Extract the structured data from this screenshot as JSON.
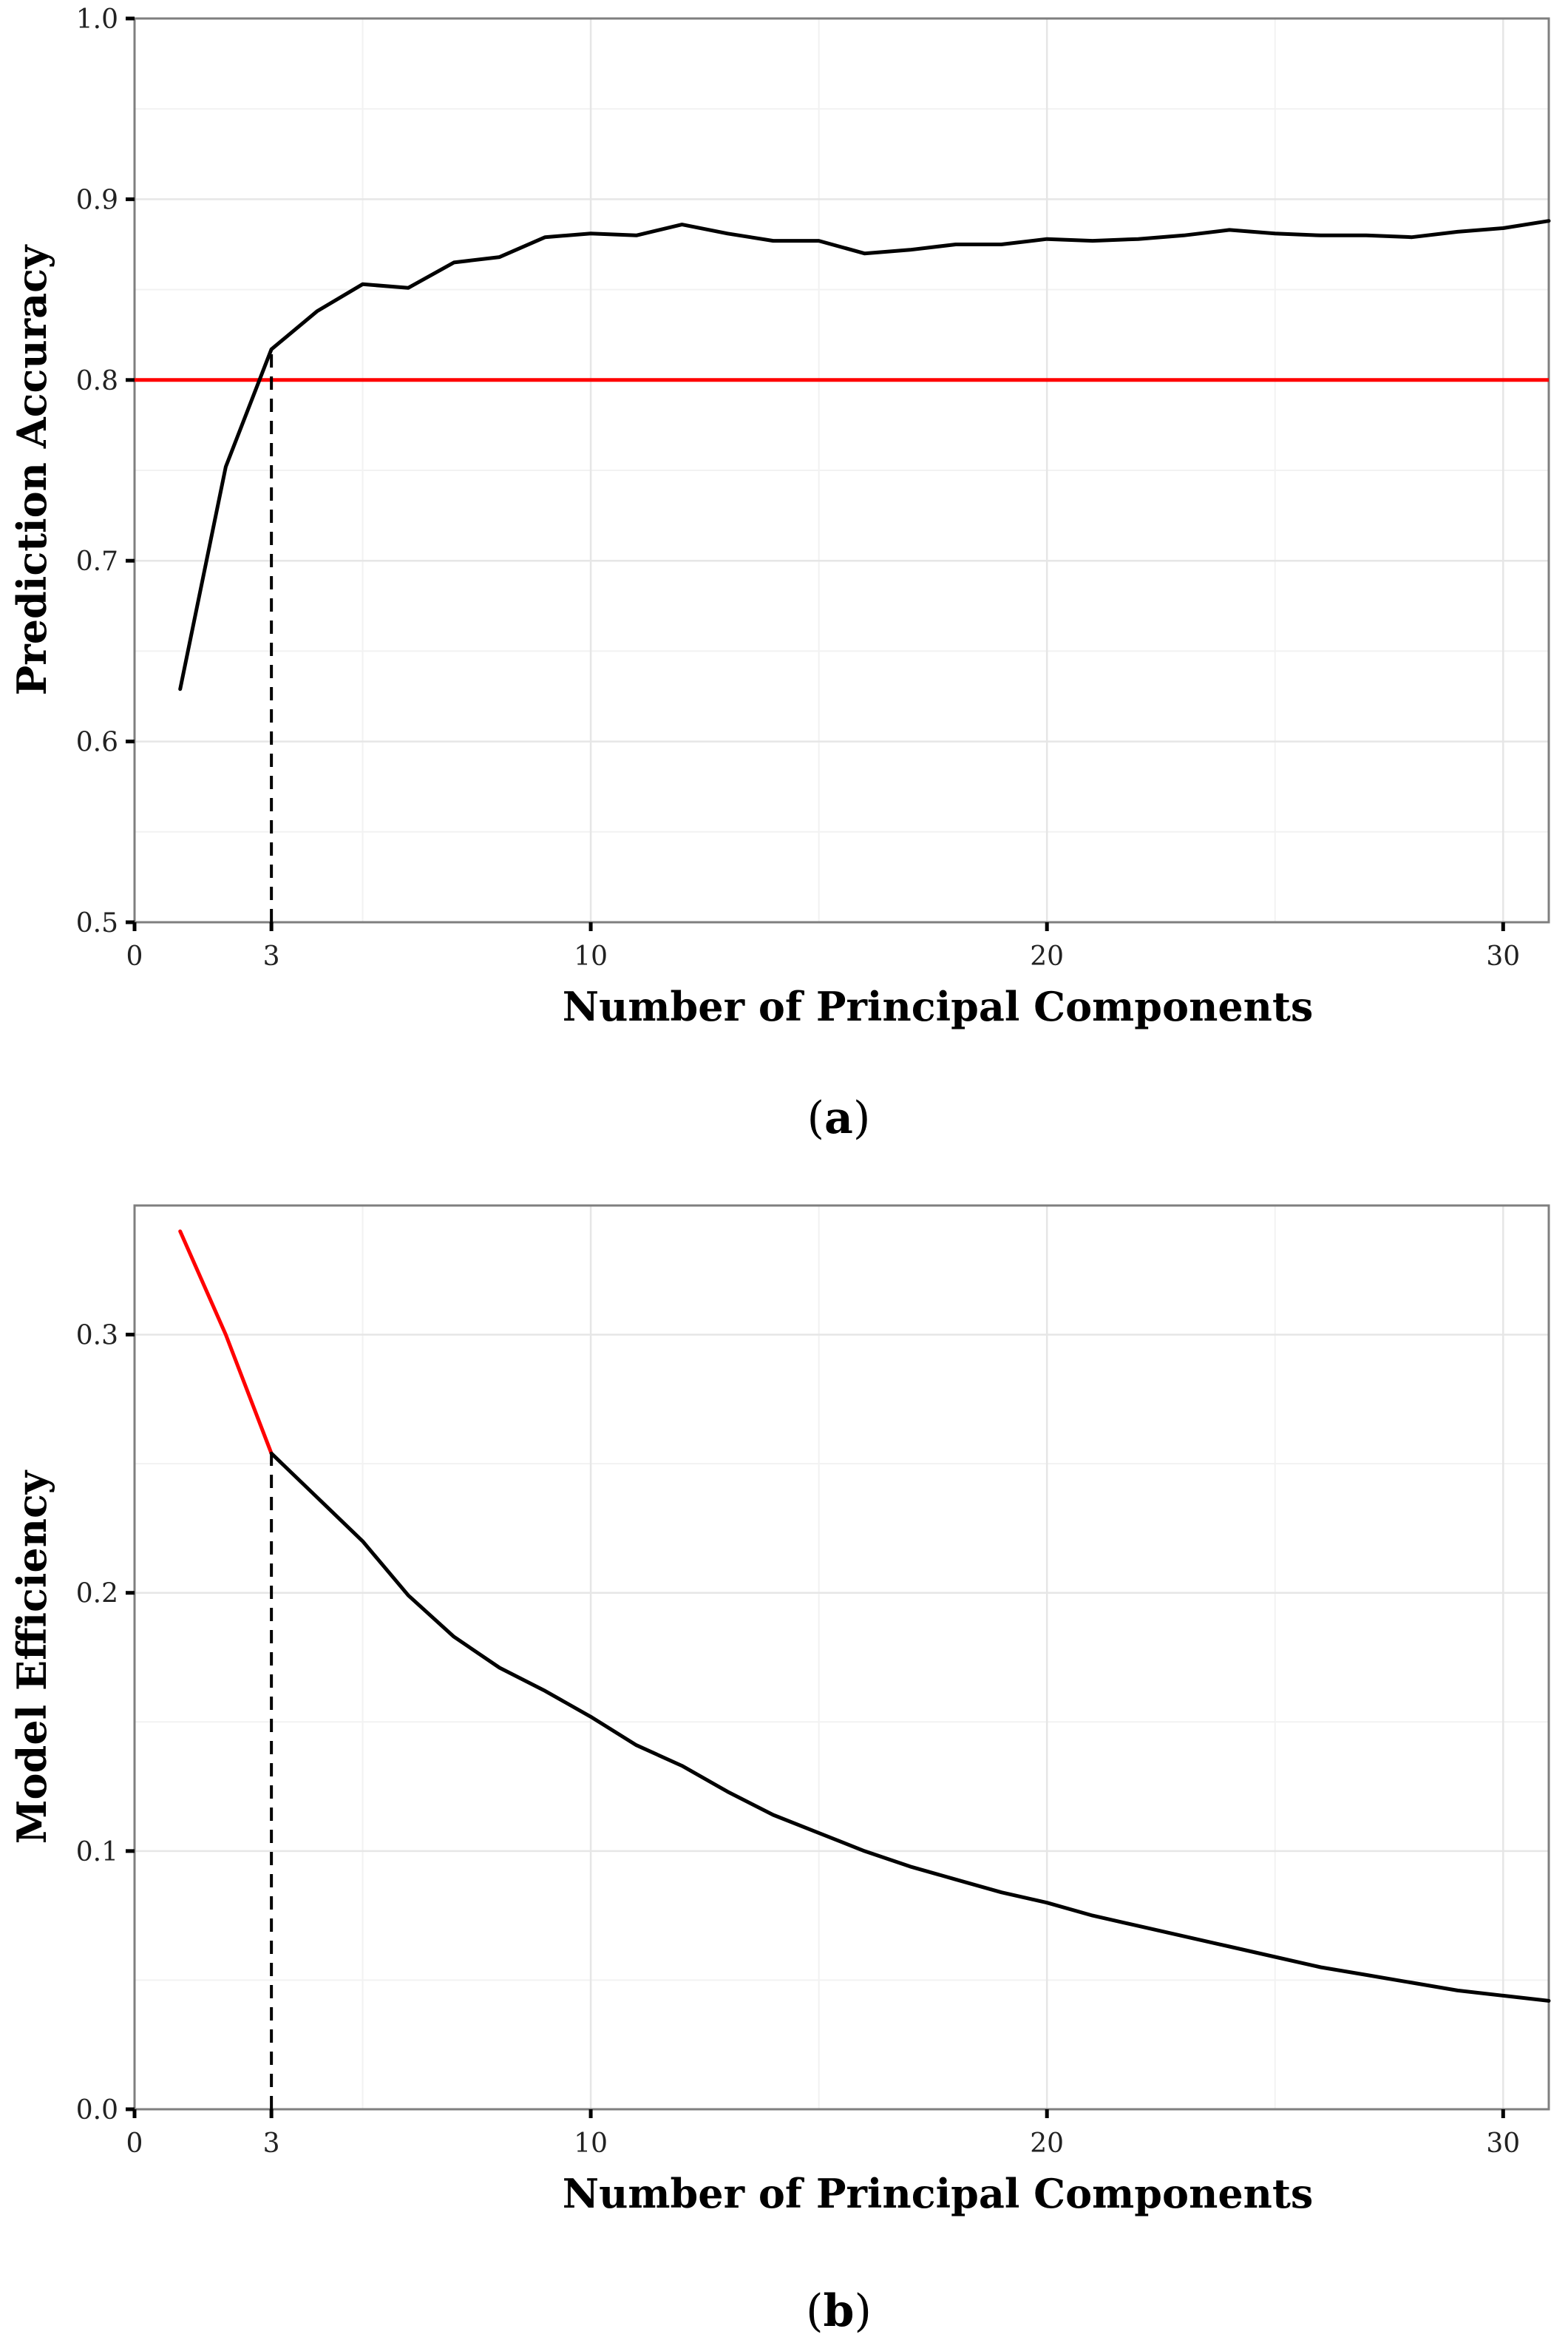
{
  "chart_data": [
    {
      "type": "line",
      "panel_label": "a",
      "xlabel": "Number of Principal Components",
      "ylabel": "Prediction Accuracy",
      "xlim": [
        0,
        31
      ],
      "ylim": [
        0.5,
        1.0
      ],
      "x_ticks": [
        0,
        3,
        10,
        20,
        30
      ],
      "x_tick_labels": [
        "0",
        "3",
        "10",
        "20",
        "30"
      ],
      "y_ticks": [
        0.5,
        0.6,
        0.7,
        0.8,
        0.9,
        1.0
      ],
      "y_tick_labels": [
        "0.5",
        "0.6",
        "0.7",
        "0.8",
        "0.9",
        "1.0"
      ],
      "grid": true,
      "series": [
        {
          "color": "#000000",
          "x": [
            1,
            2,
            3,
            4,
            5,
            6,
            7,
            8,
            9,
            10,
            11,
            12,
            13,
            14,
            15,
            16,
            17,
            18,
            19,
            20,
            21,
            22,
            23,
            24,
            25,
            26,
            27,
            28,
            29,
            30,
            31
          ],
          "values": [
            0.629,
            0.752,
            0.817,
            0.838,
            0.853,
            0.851,
            0.865,
            0.868,
            0.879,
            0.881,
            0.88,
            0.886,
            0.881,
            0.877,
            0.877,
            0.87,
            0.872,
            0.875,
            0.875,
            0.878,
            0.877,
            0.878,
            0.88,
            0.883,
            0.881,
            0.88,
            0.88,
            0.879,
            0.882,
            0.884,
            0.888
          ]
        }
      ],
      "reference_lines": [
        {
          "orientation": "horizontal",
          "value": 0.8,
          "color": "#ff0000",
          "style": "solid"
        },
        {
          "orientation": "vertical",
          "value": 3,
          "from": 0.5,
          "to": 0.817,
          "color": "#000000",
          "style": "dashed"
        }
      ]
    },
    {
      "type": "line",
      "panel_label": "b",
      "xlabel": "Number of Principal Components",
      "ylabel": "Model Efficiency",
      "xlim": [
        0,
        31
      ],
      "ylim": [
        0.0,
        0.35
      ],
      "x_ticks": [
        0,
        3,
        10,
        20,
        30
      ],
      "x_tick_labels": [
        "0",
        "3",
        "10",
        "20",
        "30"
      ],
      "y_ticks": [
        0.0,
        0.1,
        0.2,
        0.3
      ],
      "y_tick_labels": [
        "0.0",
        "0.1",
        "0.2",
        "0.3"
      ],
      "grid": true,
      "series": [
        {
          "color": "#ff0000",
          "x": [
            1,
            2,
            3
          ],
          "values": [
            0.34,
            0.3,
            0.254
          ]
        },
        {
          "color": "#000000",
          "x": [
            3,
            4,
            5,
            6,
            7,
            8,
            9,
            10,
            11,
            12,
            13,
            14,
            15,
            16,
            17,
            18,
            19,
            20,
            21,
            22,
            23,
            24,
            25,
            26,
            27,
            28,
            29,
            30,
            31
          ],
          "values": [
            0.254,
            0.237,
            0.22,
            0.199,
            0.183,
            0.171,
            0.162,
            0.152,
            0.141,
            0.133,
            0.123,
            0.114,
            0.107,
            0.1,
            0.094,
            0.089,
            0.084,
            0.08,
            0.075,
            0.071,
            0.067,
            0.063,
            0.059,
            0.055,
            0.052,
            0.049,
            0.046,
            0.044,
            0.042
          ]
        }
      ],
      "reference_lines": [
        {
          "orientation": "vertical",
          "value": 3,
          "from": 0.0,
          "to": 0.254,
          "color": "#000000",
          "style": "dashed"
        }
      ]
    }
  ]
}
